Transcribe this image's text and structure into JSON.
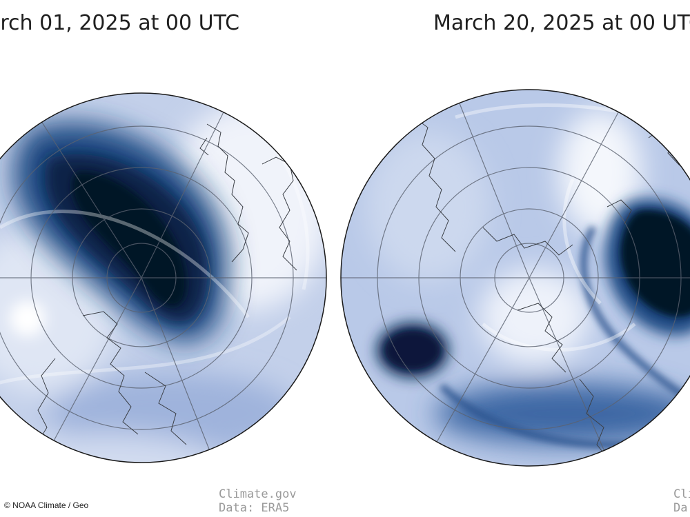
{
  "panels": {
    "left": {
      "title": "arch 01, 2025 at 00 UTC",
      "credit_line1": "Climate.gov",
      "credit_line2": "Data: ERA5"
    },
    "right": {
      "title": "March 20, 2025 at 00 UTC",
      "credit_line1": "Cli",
      "credit_line2": "Da"
    }
  },
  "copyright": "© NOAA Climate / Geo",
  "colors": {
    "vortex_dark": "#071a34",
    "vortex_mid": "#1f4a82",
    "field_light": "#b8c8e6",
    "field_white": "#f2f5fb"
  }
}
